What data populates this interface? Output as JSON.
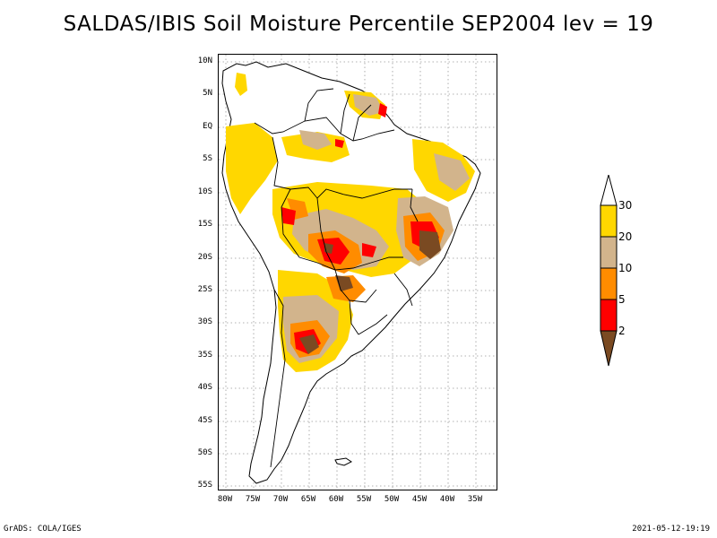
{
  "title": "SALDAS/IBIS Soil Moisture Percentile SEP2004 lev = 19",
  "axes": {
    "lat_ticks": [
      "10N",
      "5N",
      "EQ",
      "5S",
      "10S",
      "15S",
      "20S",
      "25S",
      "30S",
      "35S",
      "40S",
      "45S",
      "50S",
      "55S"
    ],
    "lon_ticks": [
      "80W",
      "75W",
      "70W",
      "65W",
      "60W",
      "55W",
      "50W",
      "45W",
      "40W",
      "35W"
    ]
  },
  "colorbar": {
    "levels": [
      "2",
      "5",
      "10",
      "20",
      "30"
    ],
    "colors": {
      "below_2": "#7a4a22",
      "2_5": "#ff0000",
      "5_10": "#ff8c00",
      "10_20": "#d2b48c",
      "20_30": "#ffd700",
      "above_30": "#ffffff"
    }
  },
  "footer": {
    "left": "GrADS: COLA/IGES",
    "right": "2021-05-12-19:19"
  }
}
